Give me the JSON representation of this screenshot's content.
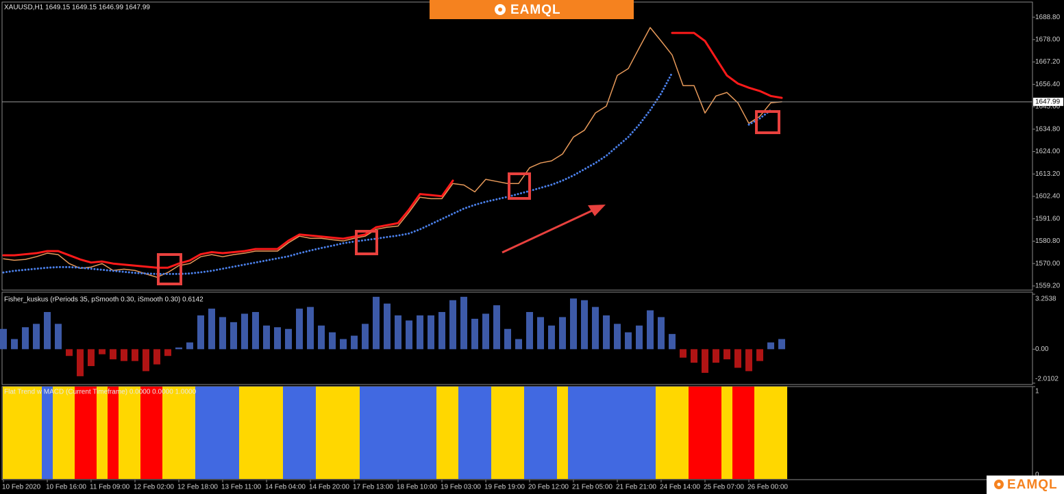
{
  "watermark": "EAMQL",
  "chart_data": [
    {
      "type": "line",
      "title": "XAUUSD,H1  1649.15 1649.15 1646.99 1647.99",
      "categories": [
        "10 Feb 2020",
        null,
        null,
        null,
        "10 Feb 16:00",
        null,
        null,
        null,
        "11 Feb 09:00",
        null,
        null,
        null,
        "12 Feb 02:00",
        null,
        null,
        null,
        "12 Feb 18:00",
        null,
        null,
        null,
        "13 Feb 11:00",
        null,
        null,
        null,
        "14 Feb 04:00",
        null,
        null,
        null,
        "14 Feb 20:00",
        null,
        null,
        null,
        "17 Feb 13:00",
        null,
        null,
        null,
        "18 Feb 10:00",
        null,
        null,
        null,
        "19 Feb 03:00",
        null,
        null,
        null,
        "19 Feb 19:00",
        null,
        null,
        null,
        "20 Feb 12:00",
        null,
        null,
        null,
        "21 Feb 05:00",
        null,
        null,
        null,
        "21 Feb 21:00",
        null,
        null,
        null,
        "24 Feb 14:00",
        null,
        null,
        null,
        "25 Feb 07:00",
        null,
        null,
        null,
        "26 Feb 00:00",
        null,
        null,
        null
      ],
      "series": [
        {
          "color": "#e89a5a",
          "values": [
            1572.3,
            1571.6,
            1572,
            1573.3,
            1575,
            1574.3,
            1570,
            1567.7,
            1568.3,
            1570,
            1566.7,
            1567.3,
            1566.7,
            1565,
            1563.4,
            1565.7,
            1569,
            1570,
            1573.3,
            1574.3,
            1573.3,
            1574.3,
            1575,
            1576,
            1576,
            1576,
            1580,
            1583.2,
            1582.2,
            1582.2,
            1581.5,
            1580.9,
            1582.2,
            1583.2,
            1586.5,
            1587.5,
            1588.1,
            1594.7,
            1602,
            1601.3,
            1601.3,
            1608.6,
            1607.9,
            1604.6,
            1610.6,
            1609.6,
            1608.6,
            1608.6,
            1616.2,
            1618.5,
            1619.5,
            1622.8,
            1631,
            1634.3,
            1642.6,
            1645.9,
            1660.7,
            1664,
            1674,
            1683.8,
            1677.3,
            1670.6,
            1655.8,
            1655.8,
            1642.6,
            1650.8,
            1652.5,
            1647.5,
            1637.6,
            1641,
            1647.5,
            1648
          ]
        },
        {
          "color": "#ff1a1a",
          "values": [
            1574,
            1574,
            1574.5,
            1575,
            1576,
            1576,
            1574,
            1572,
            1570.5,
            1571,
            1570,
            1569.5,
            1569,
            1568.5,
            1568,
            1568,
            1570,
            1571.5,
            1574.5,
            1575.5,
            1575,
            1575.5,
            1576,
            1577,
            1577,
            1577,
            1581,
            1584,
            1583.5,
            1583,
            1582.5,
            1582,
            1583,
            1584,
            1587.5,
            1588.5,
            1589.5,
            1596,
            1603.5,
            1603,
            1602.5,
            1610,
            null,
            null,
            null,
            null,
            null,
            null,
            null,
            null,
            null,
            null,
            null,
            null,
            null,
            null,
            null,
            null,
            null,
            null,
            null,
            1681.2,
            1681.2,
            1681.2,
            1677.3,
            1669,
            1660.7,
            1656.8,
            1654.8,
            1653.2,
            1650.8,
            1649.9
          ]
        },
        {
          "color": "#4a7fe8",
          "style": "dotted",
          "values": [
            1565.7,
            1566.5,
            1567,
            1567.5,
            1568,
            1568.3,
            1568.3,
            1568,
            1567.5,
            1567,
            1566.5,
            1566,
            1565.5,
            1565.2,
            1565,
            1565,
            1565,
            1565.2,
            1565.8,
            1566.5,
            1567.5,
            1568.5,
            1569.5,
            1570.5,
            1571.5,
            1572.5,
            1573.5,
            1575,
            1576.3,
            1577.5,
            1578.6,
            1579.8,
            1580.6,
            1581.3,
            1582,
            1582.8,
            1583.5,
            1584.5,
            1586.5,
            1589,
            1591.5,
            1594,
            1596.5,
            1598.3,
            1599.8,
            1601,
            1602.2,
            1603.6,
            1605,
            1606.5,
            1608,
            1610,
            1612.5,
            1615.5,
            1618.5,
            1622,
            1626.5,
            1631,
            1637,
            1644,
            1652,
            1662,
            null,
            null,
            null,
            null,
            null,
            null,
            1637,
            1640,
            1644,
            null
          ]
        }
      ],
      "ylim": [
        1557.2,
        1696.1
      ],
      "yticks": [
        {
          "value": 1559.2,
          "label": "1559.20"
        },
        {
          "value": 1570,
          "label": "1570.00"
        },
        {
          "value": 1580.8,
          "label": "1580.80"
        },
        {
          "value": 1591.6,
          "label": "1591.60"
        },
        {
          "value": 1602.4,
          "label": "1602.40"
        },
        {
          "value": 1613.2,
          "label": "1613.20"
        },
        {
          "value": 1624,
          "label": "1624.00"
        },
        {
          "value": 1634.8,
          "label": "1634.80"
        },
        {
          "value": 1645.6,
          "label": "1645.60"
        },
        {
          "value": 1656.4,
          "label": "1656.40"
        },
        {
          "value": 1667.2,
          "label": "1667.20"
        },
        {
          "value": 1678,
          "label": "1678.00"
        },
        {
          "value": 1688.8,
          "label": "1688.80"
        }
      ],
      "current_price": 1647.99
    },
    {
      "type": "bar",
      "title": "Fisher_kuskus (rPeriods 35, pSmooth 0.30, iSmooth 0.30)  0.6142",
      "values": [
        1.2,
        0.6,
        1.3,
        1.5,
        2.2,
        1.5,
        -0.4,
        -1.6,
        -1.0,
        -0.3,
        -0.6,
        -0.7,
        -0.7,
        -1.3,
        -0.9,
        -0.4,
        0.1,
        0.4,
        2.0,
        2.4,
        1.9,
        1.6,
        2.1,
        2.2,
        1.4,
        1.3,
        1.2,
        2.4,
        2.5,
        1.4,
        1.0,
        0.6,
        0.8,
        1.5,
        3.1,
        2.7,
        2.0,
        1.7,
        2.0,
        2.0,
        2.2,
        2.9,
        3.1,
        1.8,
        2.1,
        2.6,
        1.2,
        0.6,
        2.2,
        1.9,
        1.4,
        1.9,
        3.0,
        2.9,
        2.5,
        2.0,
        1.5,
        1.0,
        1.4,
        2.3,
        1.9,
        0.9,
        -0.5,
        -0.8,
        -1.4,
        -0.8,
        -0.6,
        -1.1,
        -1.3,
        -0.7,
        0.4,
        0.6
      ],
      "positive_color": "#3d5aa8",
      "negative_color": "#b01414",
      "ylim": [
        -2.0102,
        3.2538
      ],
      "yticks": [
        3.2538,
        {
          "value": 0,
          "label": "0.00"
        },
        -2.0102
      ]
    },
    {
      "type": "bar",
      "title": "Flat Trend w MACD (Current Timeframe) 0.0000 0.0000 1.0000",
      "series": [
        {
          "color": "#ffd700",
          "values": [
            1,
            1,
            1,
            1,
            null,
            1,
            1,
            null,
            null,
            1,
            null,
            1,
            1,
            null,
            null,
            1,
            1,
            1,
            null,
            null,
            null,
            null,
            1,
            1,
            1,
            1,
            null,
            null,
            null,
            1,
            1,
            1,
            1,
            null,
            null,
            null,
            null,
            null,
            null,
            null,
            1,
            1,
            null,
            null,
            null,
            1,
            1,
            1,
            null,
            null,
            null,
            1,
            null,
            null,
            null,
            null,
            null,
            null,
            null,
            null,
            1,
            1,
            1,
            null,
            null,
            null,
            1,
            null,
            null,
            1,
            1,
            1
          ]
        },
        {
          "color": "#4169e1",
          "values": [
            null,
            null,
            null,
            null,
            1,
            null,
            null,
            null,
            null,
            null,
            null,
            null,
            null,
            null,
            null,
            null,
            null,
            null,
            1,
            1,
            1,
            1,
            null,
            null,
            null,
            null,
            1,
            1,
            1,
            null,
            null,
            null,
            null,
            1,
            1,
            1,
            1,
            1,
            1,
            1,
            null,
            null,
            1,
            1,
            1,
            null,
            null,
            null,
            1,
            1,
            1,
            null,
            1,
            1,
            1,
            1,
            1,
            1,
            1,
            1,
            null,
            null,
            null,
            null,
            null,
            null,
            null,
            null,
            null,
            null,
            null,
            null
          ]
        },
        {
          "color": "#ff0000",
          "values": [
            null,
            null,
            null,
            null,
            null,
            null,
            null,
            1,
            1,
            null,
            1,
            null,
            null,
            1,
            1,
            null,
            null,
            null,
            null,
            null,
            null,
            null,
            null,
            null,
            null,
            null,
            null,
            null,
            null,
            null,
            null,
            null,
            null,
            null,
            null,
            null,
            null,
            null,
            null,
            null,
            null,
            null,
            null,
            null,
            null,
            null,
            null,
            null,
            null,
            null,
            null,
            null,
            null,
            null,
            null,
            null,
            null,
            null,
            null,
            null,
            null,
            null,
            null,
            1,
            1,
            1,
            null,
            1,
            1,
            null,
            null,
            null
          ]
        }
      ],
      "ylim": [
        0,
        1
      ],
      "yticks": [
        1,
        0
      ]
    }
  ]
}
